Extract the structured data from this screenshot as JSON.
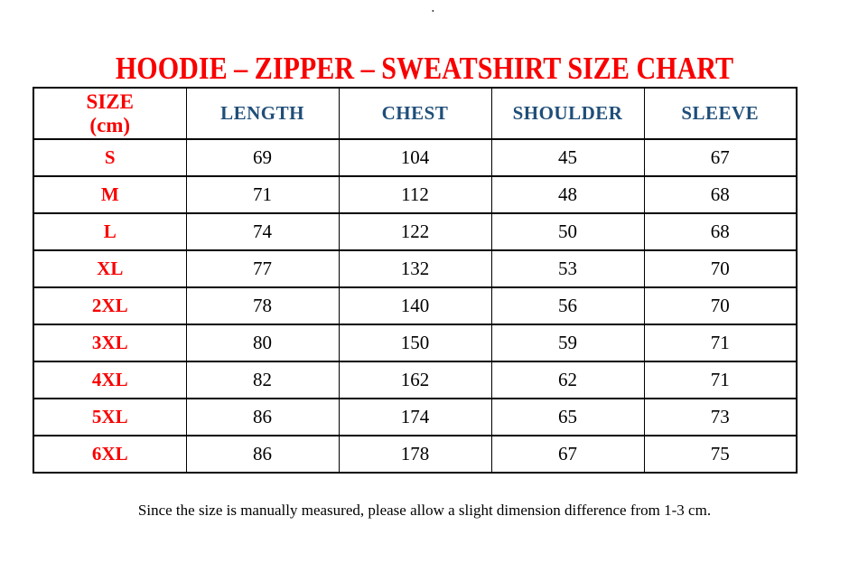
{
  "colors": {
    "red": "#f80000",
    "navy": "#1f4e79",
    "ink": "#000000",
    "paper": "#ffffff"
  },
  "artifact": {
    "dot": "."
  },
  "title": {
    "text": "HOODIE – ZIPPER – SWEATSHIRT SIZE CHART"
  },
  "table": {
    "header": {
      "size_label_line1": "SIZE",
      "size_label_line2": "(cm)",
      "columns": [
        "LENGTH",
        "CHEST",
        "SHOULDER",
        "SLEEVE"
      ]
    },
    "rows": [
      {
        "size": "S",
        "values": [
          "69",
          "104",
          "45",
          "67"
        ]
      },
      {
        "size": "M",
        "values": [
          "71",
          "112",
          "48",
          "68"
        ]
      },
      {
        "size": "L",
        "values": [
          "74",
          "122",
          "50",
          "68"
        ]
      },
      {
        "size": "XL",
        "values": [
          "77",
          "132",
          "53",
          "70"
        ]
      },
      {
        "size": "2XL",
        "values": [
          "78",
          "140",
          "56",
          "70"
        ]
      },
      {
        "size": "3XL",
        "values": [
          "80",
          "150",
          "59",
          "71"
        ]
      },
      {
        "size": "4XL",
        "values": [
          "82",
          "162",
          "62",
          "71"
        ]
      },
      {
        "size": "5XL",
        "values": [
          "86",
          "174",
          "65",
          "73"
        ]
      },
      {
        "size": "6XL",
        "values": [
          "86",
          "178",
          "67",
          "75"
        ]
      }
    ]
  },
  "footer": {
    "note": "Since the size is manually measured, please allow a slight dimension difference from 1-3 cm."
  }
}
